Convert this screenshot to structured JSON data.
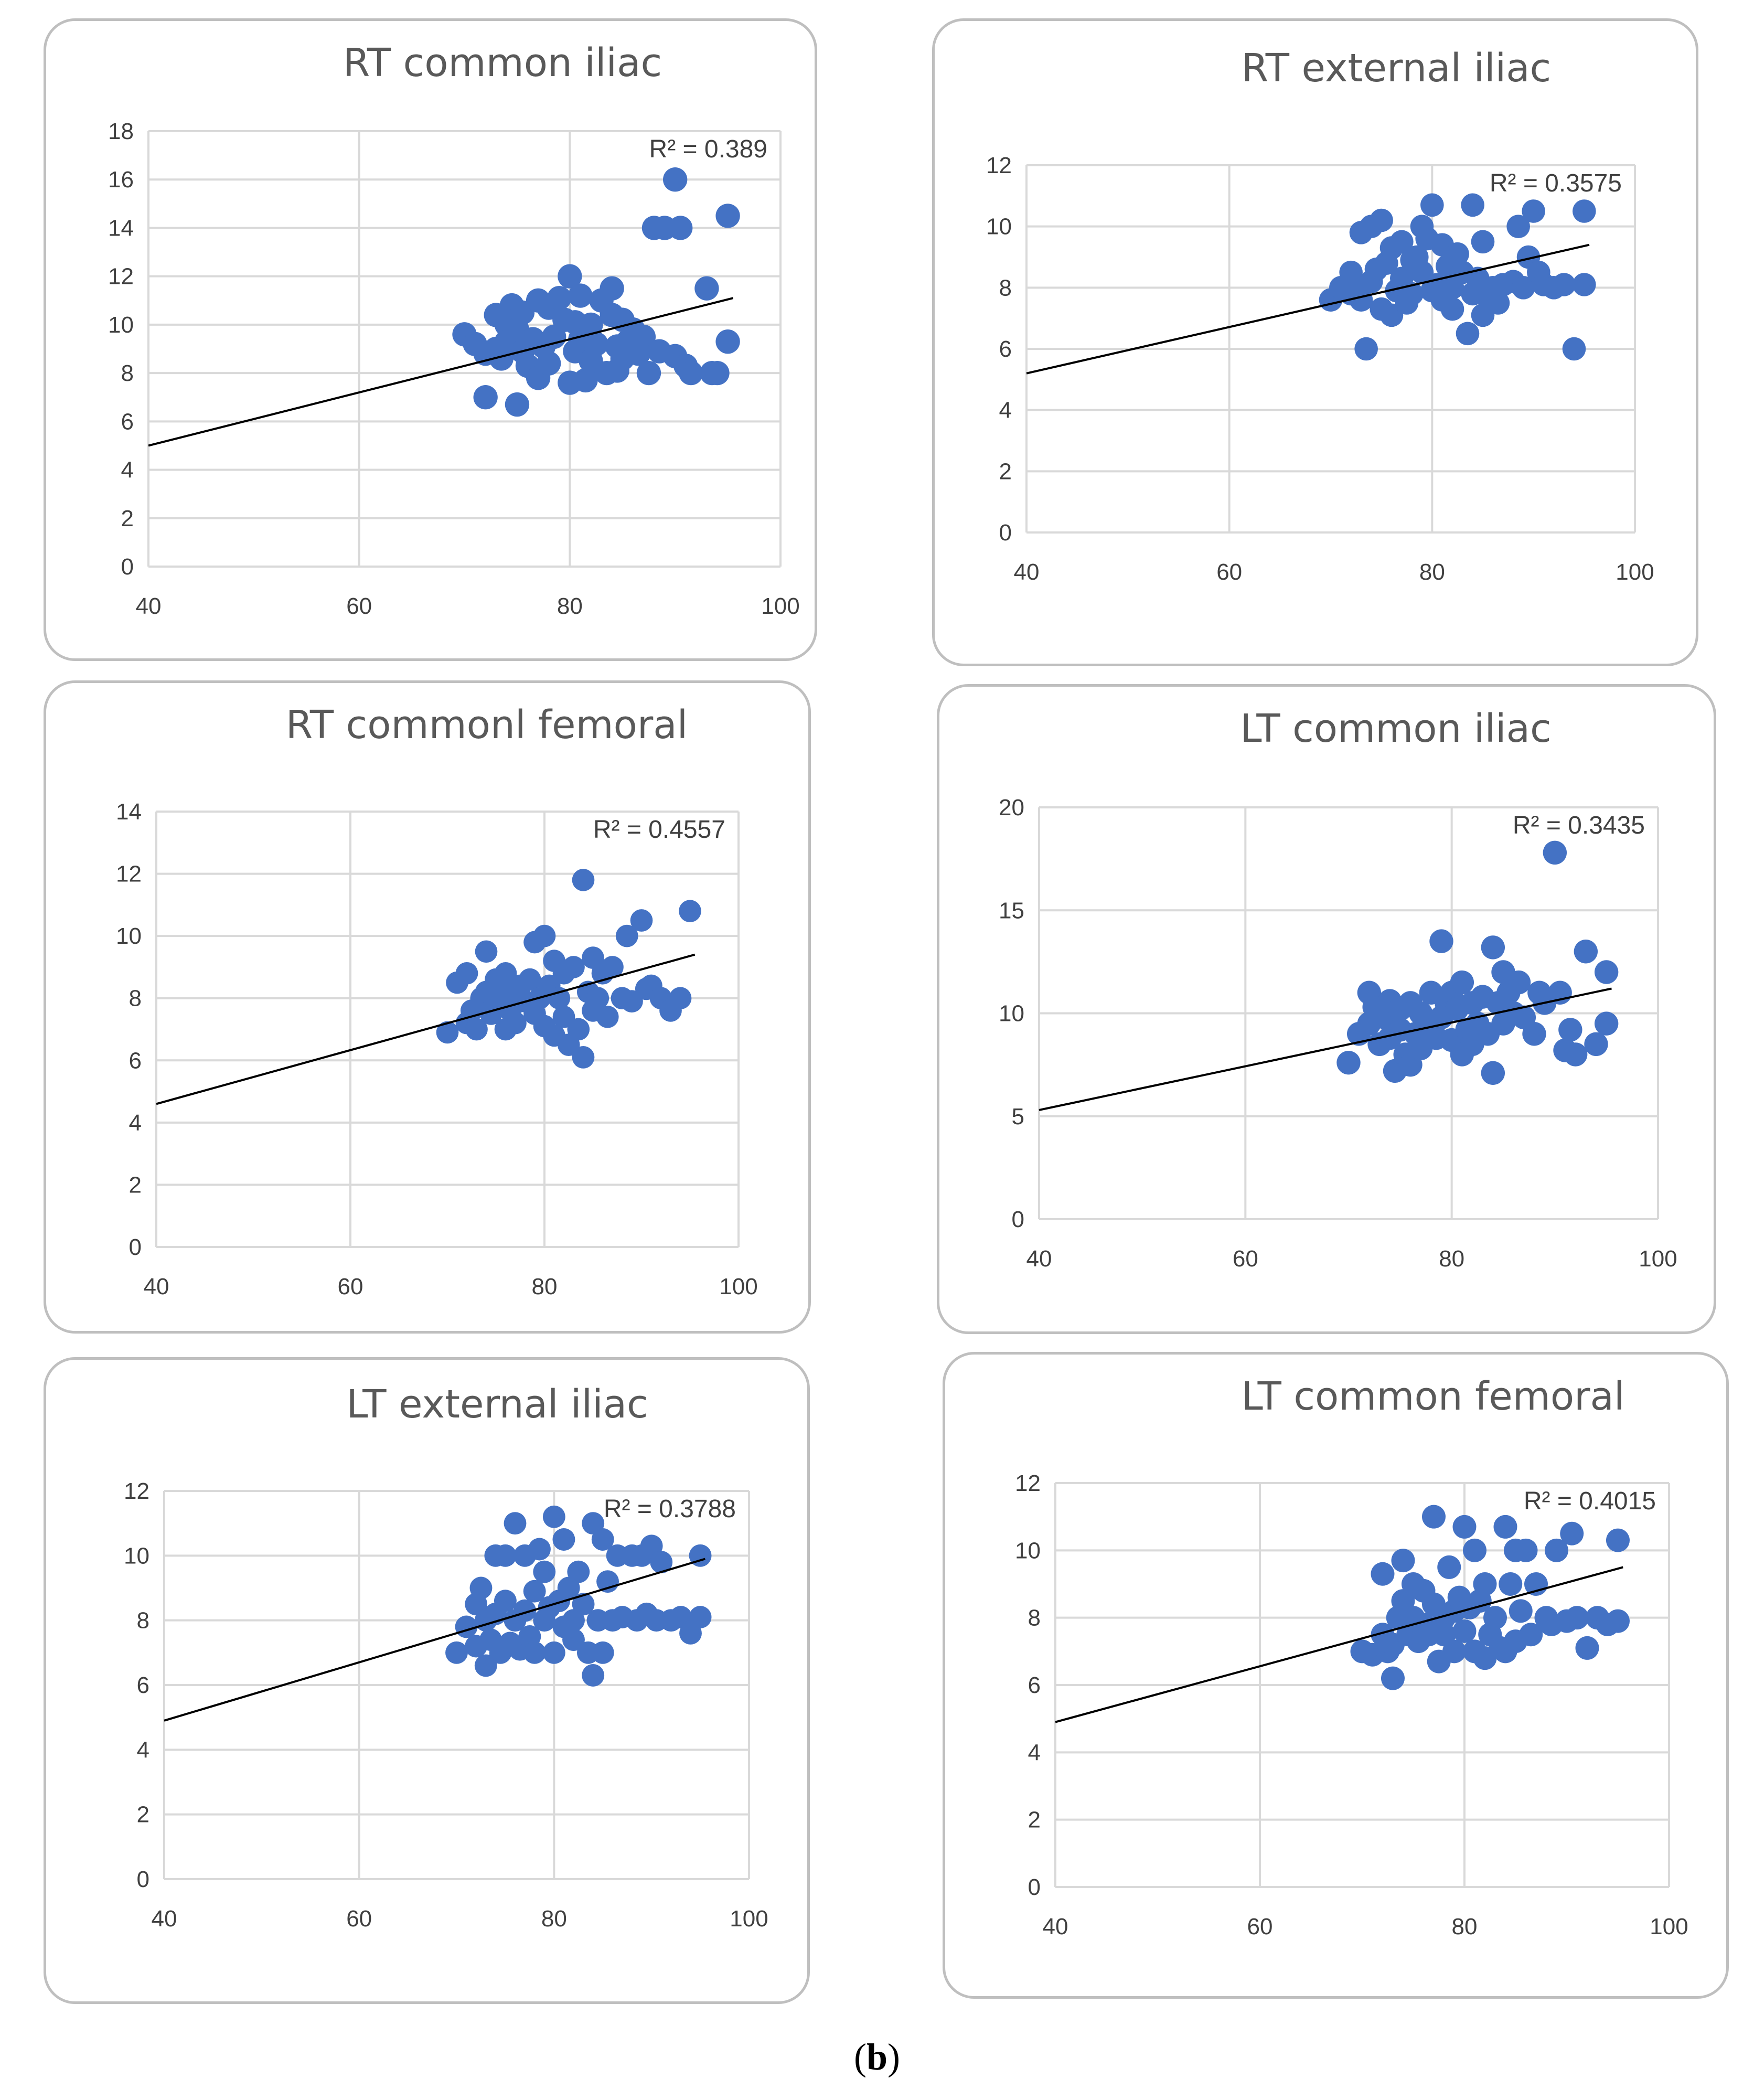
{
  "caption": {
    "open": "(",
    "label": "b",
    "close": ")"
  },
  "colors": {
    "marker": "#4472c4",
    "trendline": "#000000",
    "grid": "#d9d9d9",
    "border": "#bfbfbf"
  },
  "chart_data": [
    {
      "type": "scatter",
      "title": "RT common iliac",
      "xlim": [
        40,
        100
      ],
      "ylim": [
        0,
        18
      ],
      "xticks": [
        40,
        60,
        80,
        100
      ],
      "yticks": [
        0,
        2,
        4,
        6,
        8,
        10,
        12,
        14,
        16,
        18
      ],
      "grid": true,
      "r2_label": "R² = 0.389",
      "trendline": {
        "x": [
          40,
          95.5
        ],
        "y": [
          5.0,
          11.1
        ]
      },
      "points": {
        "x": [
          70,
          71,
          72,
          72,
          73,
          73,
          73.5,
          74,
          74,
          74.5,
          75,
          75,
          75.5,
          75.5,
          76,
          76.5,
          77,
          77,
          77.5,
          78,
          78,
          78.5,
          79,
          79.5,
          80,
          80,
          80.5,
          80.5,
          81,
          81,
          81.5,
          82,
          82,
          82.5,
          83,
          83.5,
          84,
          84,
          84.5,
          84.5,
          85,
          85,
          85.5,
          86,
          86.5,
          87,
          87.5,
          88,
          88.5,
          89,
          90,
          90,
          90.5,
          91,
          91.5,
          93,
          93.5,
          94,
          95,
          95
        ],
        "y": [
          9.6,
          9.2,
          7.0,
          8.8,
          10.4,
          9.0,
          8.6,
          10.0,
          9.3,
          10.8,
          9.8,
          6.7,
          8.9,
          10.5,
          8.3,
          9.4,
          7.8,
          11.0,
          9.1,
          8.4,
          10.7,
          9.5,
          11.1,
          10.2,
          12.0,
          7.6,
          10.1,
          8.9,
          9.4,
          11.2,
          7.7,
          8.5,
          10.0,
          9.2,
          11.0,
          8.0,
          10.4,
          11.5,
          9.1,
          8.1,
          10.2,
          8.6,
          9.3,
          9.8,
          8.8,
          9.5,
          8.0,
          14.0,
          8.9,
          14.0,
          16.0,
          8.7,
          14.0,
          8.3,
          8.0,
          11.5,
          8.0,
          8.0,
          14.5,
          9.3
        ]
      }
    },
    {
      "type": "scatter",
      "title": "RT external iliac",
      "xlim": [
        40,
        100
      ],
      "ylim": [
        0,
        12
      ],
      "xticks": [
        40,
        60,
        80,
        100
      ],
      "yticks": [
        0,
        2,
        4,
        6,
        8,
        10,
        12
      ],
      "grid": true,
      "r2_label": "R² = 0.3575",
      "trendline": {
        "x": [
          40,
          95.5
        ],
        "y": [
          5.2,
          9.4
        ]
      },
      "points": {
        "x": [
          70,
          71,
          72,
          72,
          72.5,
          73,
          73,
          73.5,
          74,
          74,
          74.5,
          75,
          75,
          75.5,
          76,
          76,
          76.5,
          77,
          77,
          77.5,
          78,
          78,
          78.5,
          79,
          79,
          79.5,
          80,
          80,
          80.5,
          81,
          81,
          81.5,
          82,
          82,
          82.5,
          83,
          83.5,
          84,
          84,
          84.5,
          85,
          85,
          85.5,
          86,
          86.5,
          87,
          88,
          88.5,
          89,
          89.5,
          90,
          90.5,
          91,
          92,
          93,
          94,
          95,
          95
        ],
        "y": [
          7.6,
          8.0,
          7.8,
          8.5,
          8.0,
          7.6,
          9.8,
          6.0,
          10.0,
          8.2,
          8.6,
          10.2,
          7.3,
          8.8,
          9.3,
          7.1,
          7.9,
          9.5,
          8.3,
          7.5,
          8.9,
          7.8,
          9.0,
          8.5,
          10.0,
          9.6,
          10.7,
          7.9,
          8.1,
          9.4,
          7.6,
          8.7,
          8.0,
          7.3,
          9.1,
          8.5,
          6.5,
          10.7,
          7.8,
          8.3,
          9.5,
          7.1,
          7.7,
          8.0,
          7.5,
          8.1,
          8.2,
          10.0,
          8.0,
          9.0,
          10.5,
          8.5,
          8.1,
          8.0,
          8.1,
          6.0,
          8.1,
          10.5
        ]
      }
    },
    {
      "type": "scatter",
      "title": "RT commonl femoral",
      "xlim": [
        40,
        100
      ],
      "ylim": [
        0,
        14
      ],
      "xticks": [
        40,
        60,
        80,
        100
      ],
      "yticks": [
        0,
        2,
        4,
        6,
        8,
        10,
        12,
        14
      ],
      "grid": true,
      "r2_label": "R² = 0.4557",
      "trendline": {
        "x": [
          40,
          95.5
        ],
        "y": [
          4.6,
          9.4
        ]
      },
      "points": {
        "x": [
          70,
          71,
          72,
          72,
          72.5,
          73,
          73.5,
          74,
          74,
          74.5,
          75,
          75,
          75.5,
          76,
          76,
          76.5,
          77,
          77,
          77.5,
          78,
          78.5,
          79,
          79,
          79.5,
          80,
          80,
          80.5,
          81,
          81,
          81.5,
          82,
          82,
          82.5,
          83,
          83.5,
          84,
          84,
          84.5,
          85,
          85,
          85.5,
          86,
          86.5,
          87,
          88,
          88.5,
          89,
          90,
          90.5,
          91,
          92,
          93,
          94,
          95
        ],
        "y": [
          6.9,
          8.5,
          7.2,
          8.8,
          7.6,
          7.0,
          8.0,
          9.5,
          8.2,
          7.5,
          8.6,
          7.8,
          8.3,
          7.0,
          8.8,
          7.6,
          8.1,
          7.2,
          8.4,
          7.9,
          8.6,
          7.5,
          9.8,
          8.0,
          10.0,
          7.1,
          8.4,
          6.8,
          9.2,
          8.0,
          7.4,
          8.8,
          6.5,
          9.0,
          7.0,
          11.8,
          6.1,
          8.2,
          9.3,
          7.6,
          8.0,
          8.8,
          7.4,
          9.0,
          8.0,
          10.0,
          7.9,
          10.5,
          8.3,
          8.4,
          8.0,
          7.6,
          8.0,
          10.8
        ]
      }
    },
    {
      "type": "scatter",
      "title": "LT common iliac",
      "xlim": [
        40,
        100
      ],
      "ylim": [
        0,
        20
      ],
      "xticks": [
        40,
        60,
        80,
        100
      ],
      "yticks": [
        0,
        5,
        10,
        15,
        20
      ],
      "grid": true,
      "r2_label": "R² = 0.3435",
      "trendline": {
        "x": [
          40,
          95.5
        ],
        "y": [
          5.3,
          11.2
        ]
      },
      "points": {
        "x": [
          70,
          71,
          72,
          72,
          72.5,
          73,
          73.5,
          74,
          74,
          74.5,
          75,
          75,
          75.5,
          76,
          76,
          76.5,
          77,
          77,
          77.5,
          78,
          78.5,
          79,
          79,
          79.5,
          80,
          80,
          80.5,
          81,
          81,
          81.5,
          82,
          82,
          82.5,
          83,
          83.5,
          84,
          84,
          84.5,
          85,
          85,
          85.5,
          86,
          86.5,
          87,
          88,
          88.5,
          89,
          90,
          90.5,
          91,
          91.5,
          92,
          93,
          94,
          95,
          95
        ],
        "y": [
          7.6,
          9.0,
          11.0,
          9.5,
          10.3,
          8.5,
          9.8,
          10.6,
          8.8,
          7.2,
          10.2,
          9.2,
          8.0,
          10.5,
          7.5,
          9.0,
          10.0,
          8.3,
          9.5,
          11.0,
          8.8,
          9.8,
          13.5,
          10.5,
          11.0,
          8.7,
          10.2,
          8.0,
          11.5,
          9.2,
          8.5,
          10.5,
          9.5,
          10.8,
          9.0,
          13.2,
          7.1,
          10.5,
          12.0,
          9.5,
          11.0,
          10.0,
          11.5,
          9.8,
          9.0,
          11.0,
          10.5,
          17.8,
          11.0,
          8.2,
          9.2,
          8.0,
          13.0,
          8.5,
          9.5,
          12.0
        ]
      }
    },
    {
      "type": "scatter",
      "title": "LT external iliac",
      "xlim": [
        40,
        100
      ],
      "ylim": [
        0,
        12
      ],
      "xticks": [
        40,
        60,
        80,
        100
      ],
      "yticks": [
        0,
        2,
        4,
        6,
        8,
        10,
        12
      ],
      "grid": true,
      "r2_label": "R² = 0.3788",
      "trendline": {
        "x": [
          40,
          95.5
        ],
        "y": [
          4.9,
          9.9
        ]
      },
      "points": {
        "x": [
          70,
          71,
          72,
          72,
          72.5,
          73,
          73,
          73.5,
          74,
          74,
          74.5,
          75,
          75,
          75.5,
          76,
          76,
          76.5,
          77,
          77,
          77.5,
          78,
          78,
          78.5,
          79,
          79,
          79.5,
          80,
          80,
          80.5,
          81,
          81,
          81.5,
          82,
          82,
          82.5,
          83,
          83.5,
          84,
          84,
          84.5,
          85,
          85,
          85.5,
          86,
          86.5,
          87,
          88,
          88.5,
          89,
          89.5,
          90,
          90.5,
          91,
          92,
          93,
          94,
          95,
          95
        ],
        "y": [
          7.0,
          7.8,
          7.2,
          8.5,
          9.0,
          6.6,
          8.0,
          7.4,
          10.0,
          8.2,
          7.0,
          10.0,
          8.6,
          7.3,
          11.0,
          8.0,
          7.1,
          10.0,
          8.3,
          7.5,
          8.9,
          7.0,
          10.2,
          8.0,
          9.5,
          8.4,
          11.2,
          7.0,
          8.6,
          10.5,
          7.8,
          9.0,
          8.0,
          7.4,
          9.5,
          8.5,
          7.0,
          11.0,
          6.3,
          8.0,
          10.5,
          7.0,
          9.2,
          8.0,
          10.0,
          8.1,
          10.0,
          8.0,
          10.0,
          8.2,
          10.3,
          8.0,
          9.8,
          8.0,
          8.1,
          7.6,
          8.1,
          10.0
        ]
      }
    },
    {
      "type": "scatter",
      "title": "LT common femoral",
      "xlim": [
        40,
        100
      ],
      "ylim": [
        0,
        12
      ],
      "xticks": [
        40,
        60,
        80,
        100
      ],
      "yticks": [
        0,
        2,
        4,
        6,
        8,
        10,
        12
      ],
      "grid": true,
      "r2_label": "R² = 0.4015",
      "trendline": {
        "x": [
          40,
          95.5
        ],
        "y": [
          4.9,
          9.5
        ]
      },
      "points": {
        "x": [
          70,
          71,
          72,
          72,
          72.5,
          73,
          73,
          73.5,
          74,
          74,
          74.5,
          75,
          75,
          75.5,
          76,
          76,
          76.5,
          77,
          77,
          77.5,
          78,
          78,
          78.5,
          79,
          79,
          79.5,
          80,
          80,
          80.5,
          81,
          81,
          81.5,
          82,
          82,
          82.5,
          83,
          83.5,
          84,
          84,
          84.5,
          85,
          85,
          85.5,
          86,
          86.5,
          87,
          88,
          88.5,
          89,
          90,
          90.5,
          91,
          92,
          93,
          94,
          95,
          95
        ],
        "y": [
          7.0,
          6.9,
          9.3,
          7.5,
          7.0,
          6.2,
          7.2,
          8.0,
          9.7,
          8.5,
          7.5,
          9.0,
          8.0,
          7.3,
          8.8,
          7.8,
          7.5,
          11.0,
          8.4,
          6.7,
          8.0,
          7.5,
          9.5,
          8.2,
          7.0,
          8.6,
          10.7,
          7.6,
          8.3,
          10.0,
          7.0,
          8.5,
          6.8,
          9.0,
          7.5,
          8.0,
          7.1,
          10.7,
          7.0,
          9.0,
          10.0,
          7.3,
          8.2,
          10.0,
          7.5,
          9.0,
          8.0,
          7.8,
          10.0,
          7.9,
          10.5,
          8.0,
          7.1,
          8.0,
          7.8,
          7.9,
          10.3
        ]
      }
    }
  ]
}
